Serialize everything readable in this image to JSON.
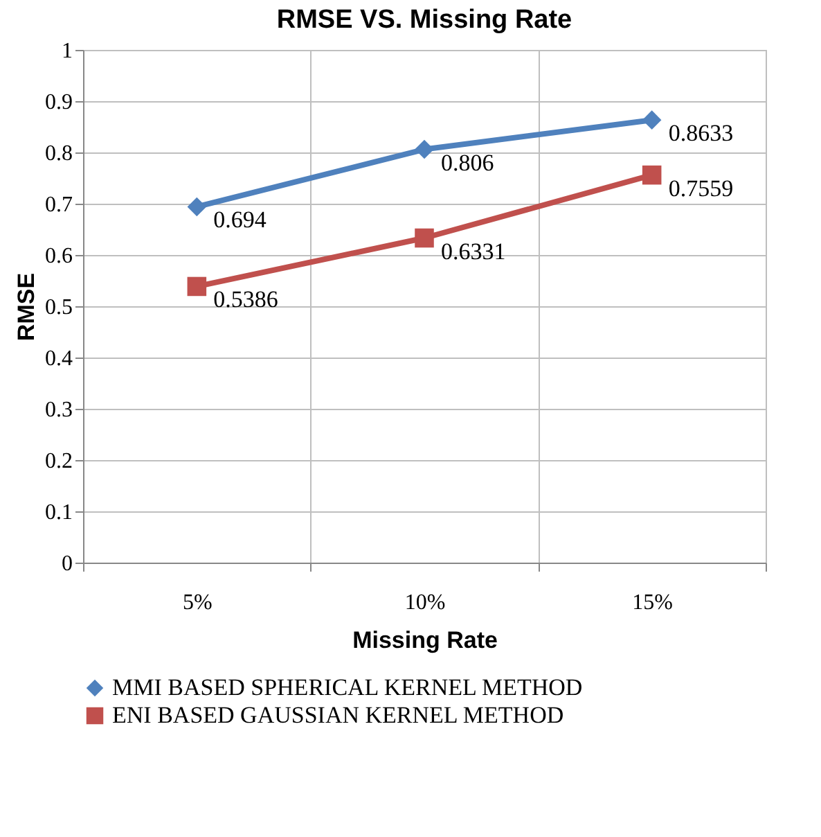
{
  "chart_data": {
    "type": "line",
    "title": "RMSE VS. Missing Rate",
    "xlabel": "Missing Rate",
    "ylabel": "RMSE",
    "categories": [
      "5%",
      "10%",
      "15%"
    ],
    "series": [
      {
        "name": "MMI BASED SPHERICAL KERNEL METHOD",
        "color": "#4f81bd",
        "marker": "diamond",
        "values": [
          0.694,
          0.806,
          0.8633
        ]
      },
      {
        "name": "ENI BASED GAUSSIAN  KERNEL METHOD",
        "color": "#c0504d",
        "marker": "square",
        "values": [
          0.5386,
          0.6331,
          0.7559
        ]
      }
    ],
    "ylim": [
      0,
      1
    ],
    "yticks": [
      0,
      0.1,
      0.2,
      0.3,
      0.4,
      0.5,
      0.6,
      0.7,
      0.8,
      0.9,
      1
    ],
    "grid": true,
    "legend": "bottom",
    "data_labels": true,
    "line_style": "solid"
  }
}
